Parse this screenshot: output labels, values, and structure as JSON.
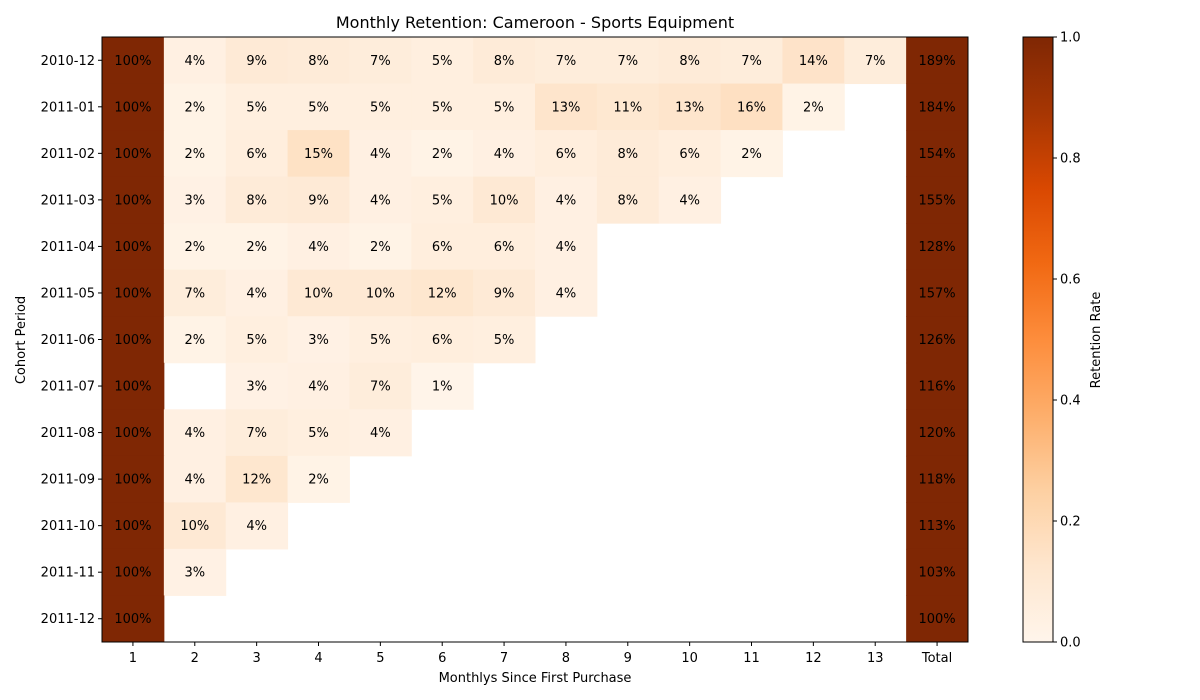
{
  "chart_data": {
    "type": "heatmap",
    "title": "Monthly Retention: Cameroon - Sports Equipment",
    "xlabel": "Monthlys Since First Purchase",
    "ylabel": "Cohort Period",
    "x_categories": [
      "1",
      "2",
      "3",
      "4",
      "5",
      "6",
      "7",
      "8",
      "9",
      "10",
      "11",
      "12",
      "13",
      "Total"
    ],
    "y_categories": [
      "2010-12",
      "2011-01",
      "2011-02",
      "2011-03",
      "2011-04",
      "2011-05",
      "2011-06",
      "2011-07",
      "2011-08",
      "2011-09",
      "2011-10",
      "2011-11",
      "2011-12"
    ],
    "values": [
      [
        1.0,
        0.04,
        0.09,
        0.08,
        0.07,
        0.05,
        0.08,
        0.07,
        0.07,
        0.08,
        0.07,
        0.14,
        0.07,
        1.89
      ],
      [
        1.0,
        0.02,
        0.05,
        0.05,
        0.05,
        0.05,
        0.05,
        0.13,
        0.11,
        0.13,
        0.16,
        0.02,
        null,
        1.84
      ],
      [
        1.0,
        0.02,
        0.06,
        0.15,
        0.04,
        0.02,
        0.04,
        0.06,
        0.08,
        0.06,
        0.02,
        null,
        null,
        1.54
      ],
      [
        1.0,
        0.03,
        0.08,
        0.09,
        0.04,
        0.05,
        0.1,
        0.04,
        0.08,
        0.04,
        null,
        null,
        null,
        1.55
      ],
      [
        1.0,
        0.02,
        0.02,
        0.04,
        0.02,
        0.06,
        0.06,
        0.04,
        null,
        null,
        null,
        null,
        null,
        1.28
      ],
      [
        1.0,
        0.07,
        0.04,
        0.1,
        0.1,
        0.12,
        0.09,
        0.04,
        null,
        null,
        null,
        null,
        null,
        1.57
      ],
      [
        1.0,
        0.02,
        0.05,
        0.03,
        0.05,
        0.06,
        0.05,
        null,
        null,
        null,
        null,
        null,
        null,
        1.26
      ],
      [
        1.0,
        null,
        0.03,
        0.04,
        0.07,
        0.01,
        null,
        null,
        null,
        null,
        null,
        null,
        null,
        1.16
      ],
      [
        1.0,
        0.04,
        0.07,
        0.05,
        0.04,
        null,
        null,
        null,
        null,
        null,
        null,
        null,
        null,
        1.2
      ],
      [
        1.0,
        0.04,
        0.12,
        0.02,
        null,
        null,
        null,
        null,
        null,
        null,
        null,
        null,
        null,
        1.18
      ],
      [
        1.0,
        0.1,
        0.04,
        null,
        null,
        null,
        null,
        null,
        null,
        null,
        null,
        null,
        null,
        1.13
      ],
      [
        1.0,
        0.03,
        null,
        null,
        null,
        null,
        null,
        null,
        null,
        null,
        null,
        null,
        null,
        1.03
      ],
      [
        1.0,
        null,
        null,
        null,
        null,
        null,
        null,
        null,
        null,
        null,
        null,
        null,
        null,
        1.0
      ]
    ],
    "value_labels": [
      [
        "100%",
        "4%",
        "9%",
        "8%",
        "7%",
        "5%",
        "8%",
        "7%",
        "7%",
        "8%",
        "7%",
        "14%",
        "7%",
        "189%"
      ],
      [
        "100%",
        "2%",
        "5%",
        "5%",
        "5%",
        "5%",
        "5%",
        "13%",
        "11%",
        "13%",
        "16%",
        "2%",
        "",
        "184%"
      ],
      [
        "100%",
        "2%",
        "6%",
        "15%",
        "4%",
        "2%",
        "4%",
        "6%",
        "8%",
        "6%",
        "2%",
        "",
        "",
        "154%"
      ],
      [
        "100%",
        "3%",
        "8%",
        "9%",
        "4%",
        "5%",
        "10%",
        "4%",
        "8%",
        "4%",
        "",
        "",
        "",
        "155%"
      ],
      [
        "100%",
        "2%",
        "2%",
        "4%",
        "2%",
        "6%",
        "6%",
        "4%",
        "",
        "",
        "",
        "",
        "",
        "128%"
      ],
      [
        "100%",
        "7%",
        "4%",
        "10%",
        "10%",
        "12%",
        "9%",
        "4%",
        "",
        "",
        "",
        "",
        "",
        "157%"
      ],
      [
        "100%",
        "2%",
        "5%",
        "3%",
        "5%",
        "6%",
        "5%",
        "",
        "",
        "",
        "",
        "",
        "",
        "126%"
      ],
      [
        "100%",
        "",
        "3%",
        "4%",
        "7%",
        "1%",
        "",
        "",
        "",
        "",
        "",
        "",
        "",
        "116%"
      ],
      [
        "100%",
        "4%",
        "7%",
        "5%",
        "4%",
        "",
        "",
        "",
        "",
        "",
        "",
        "",
        "",
        "120%"
      ],
      [
        "100%",
        "4%",
        "12%",
        "2%",
        "",
        "",
        "",
        "",
        "",
        "",
        "",
        "",
        "",
        "118%"
      ],
      [
        "100%",
        "10%",
        "4%",
        "",
        "",
        "",
        "",
        "",
        "",
        "",
        "",
        "",
        "",
        "113%"
      ],
      [
        "100%",
        "3%",
        "",
        "",
        "",
        "",
        "",
        "",
        "",
        "",
        "",
        "",
        "",
        "103%"
      ],
      [
        "100%",
        "",
        "",
        "",
        "",
        "",
        "",
        "",
        "",
        "",
        "",
        "",
        "",
        "100%"
      ]
    ],
    "colorscale": "Oranges",
    "color_range": [
      0.0,
      1.0
    ],
    "colorbar": {
      "label": "Retention Rate",
      "ticks": [
        "0.0",
        "0.2",
        "0.4",
        "0.6",
        "0.8",
        "1.0"
      ]
    },
    "grid": false
  }
}
